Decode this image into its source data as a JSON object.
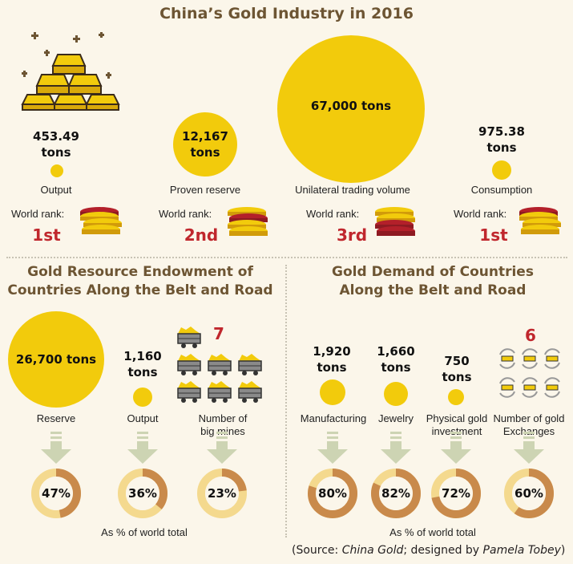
{
  "top": {
    "title": "China’s Gold Industry in 2016",
    "world_rank_label": "World rank:",
    "items": [
      {
        "value": "453.49\ntons",
        "label": "Output",
        "rank": "1st"
      },
      {
        "value": "12,167\ntons",
        "label": "Proven reserve",
        "rank": "2nd"
      },
      {
        "value": "67,000 tons",
        "label": "Unilateral trading volume",
        "rank": "3rd"
      },
      {
        "value": "975.38\ntons",
        "label": "Consumption",
        "rank": "1st"
      }
    ]
  },
  "resource": {
    "title_line1": "Gold Resource Endowment of",
    "title_line2": "Countries Along the Belt and Road",
    "reserve": {
      "value": "26,700 tons",
      "label": "Reserve",
      "pct": 47,
      "pct_label": "47%"
    },
    "output": {
      "value": "1,160\ntons",
      "label": "Output",
      "pct": 36,
      "pct_label": "36%"
    },
    "mines": {
      "value": "7",
      "label": "Number of\nbig mines",
      "pct": 23,
      "pct_label": "23%"
    },
    "footnote": "As % of world total"
  },
  "demand": {
    "title_line1": "Gold Demand of Countries",
    "title_line2": "Along the Belt and Road",
    "manufacturing": {
      "value": "1,920\ntons",
      "label": "Manufacturing",
      "pct": 80,
      "pct_label": "80%"
    },
    "jewelry": {
      "value": "1,660\ntons",
      "label": "Jewelry",
      "pct": 82,
      "pct_label": "82%"
    },
    "investment": {
      "value": "750\ntons",
      "label": "Physical gold\ninvestment",
      "pct": 72,
      "pct_label": "72%"
    },
    "exchanges": {
      "value": "6",
      "label": "Number of gold\nExchanges",
      "pct": 60,
      "pct_label": "60%"
    },
    "footnote": "As % of world total"
  },
  "source": {
    "prefix": "(Source: ",
    "publication": "China Gold",
    "middle": "; designed by ",
    "designer": "Pamela Tobey",
    "suffix": ")"
  },
  "colors": {
    "gold": "#f2cb0c",
    "title_brown": "#6d5533",
    "rank_red": "#c0272d",
    "donut_fill": "#c98a4b",
    "donut_track": "#f4d98e",
    "arrow": "#cdd4b3"
  }
}
